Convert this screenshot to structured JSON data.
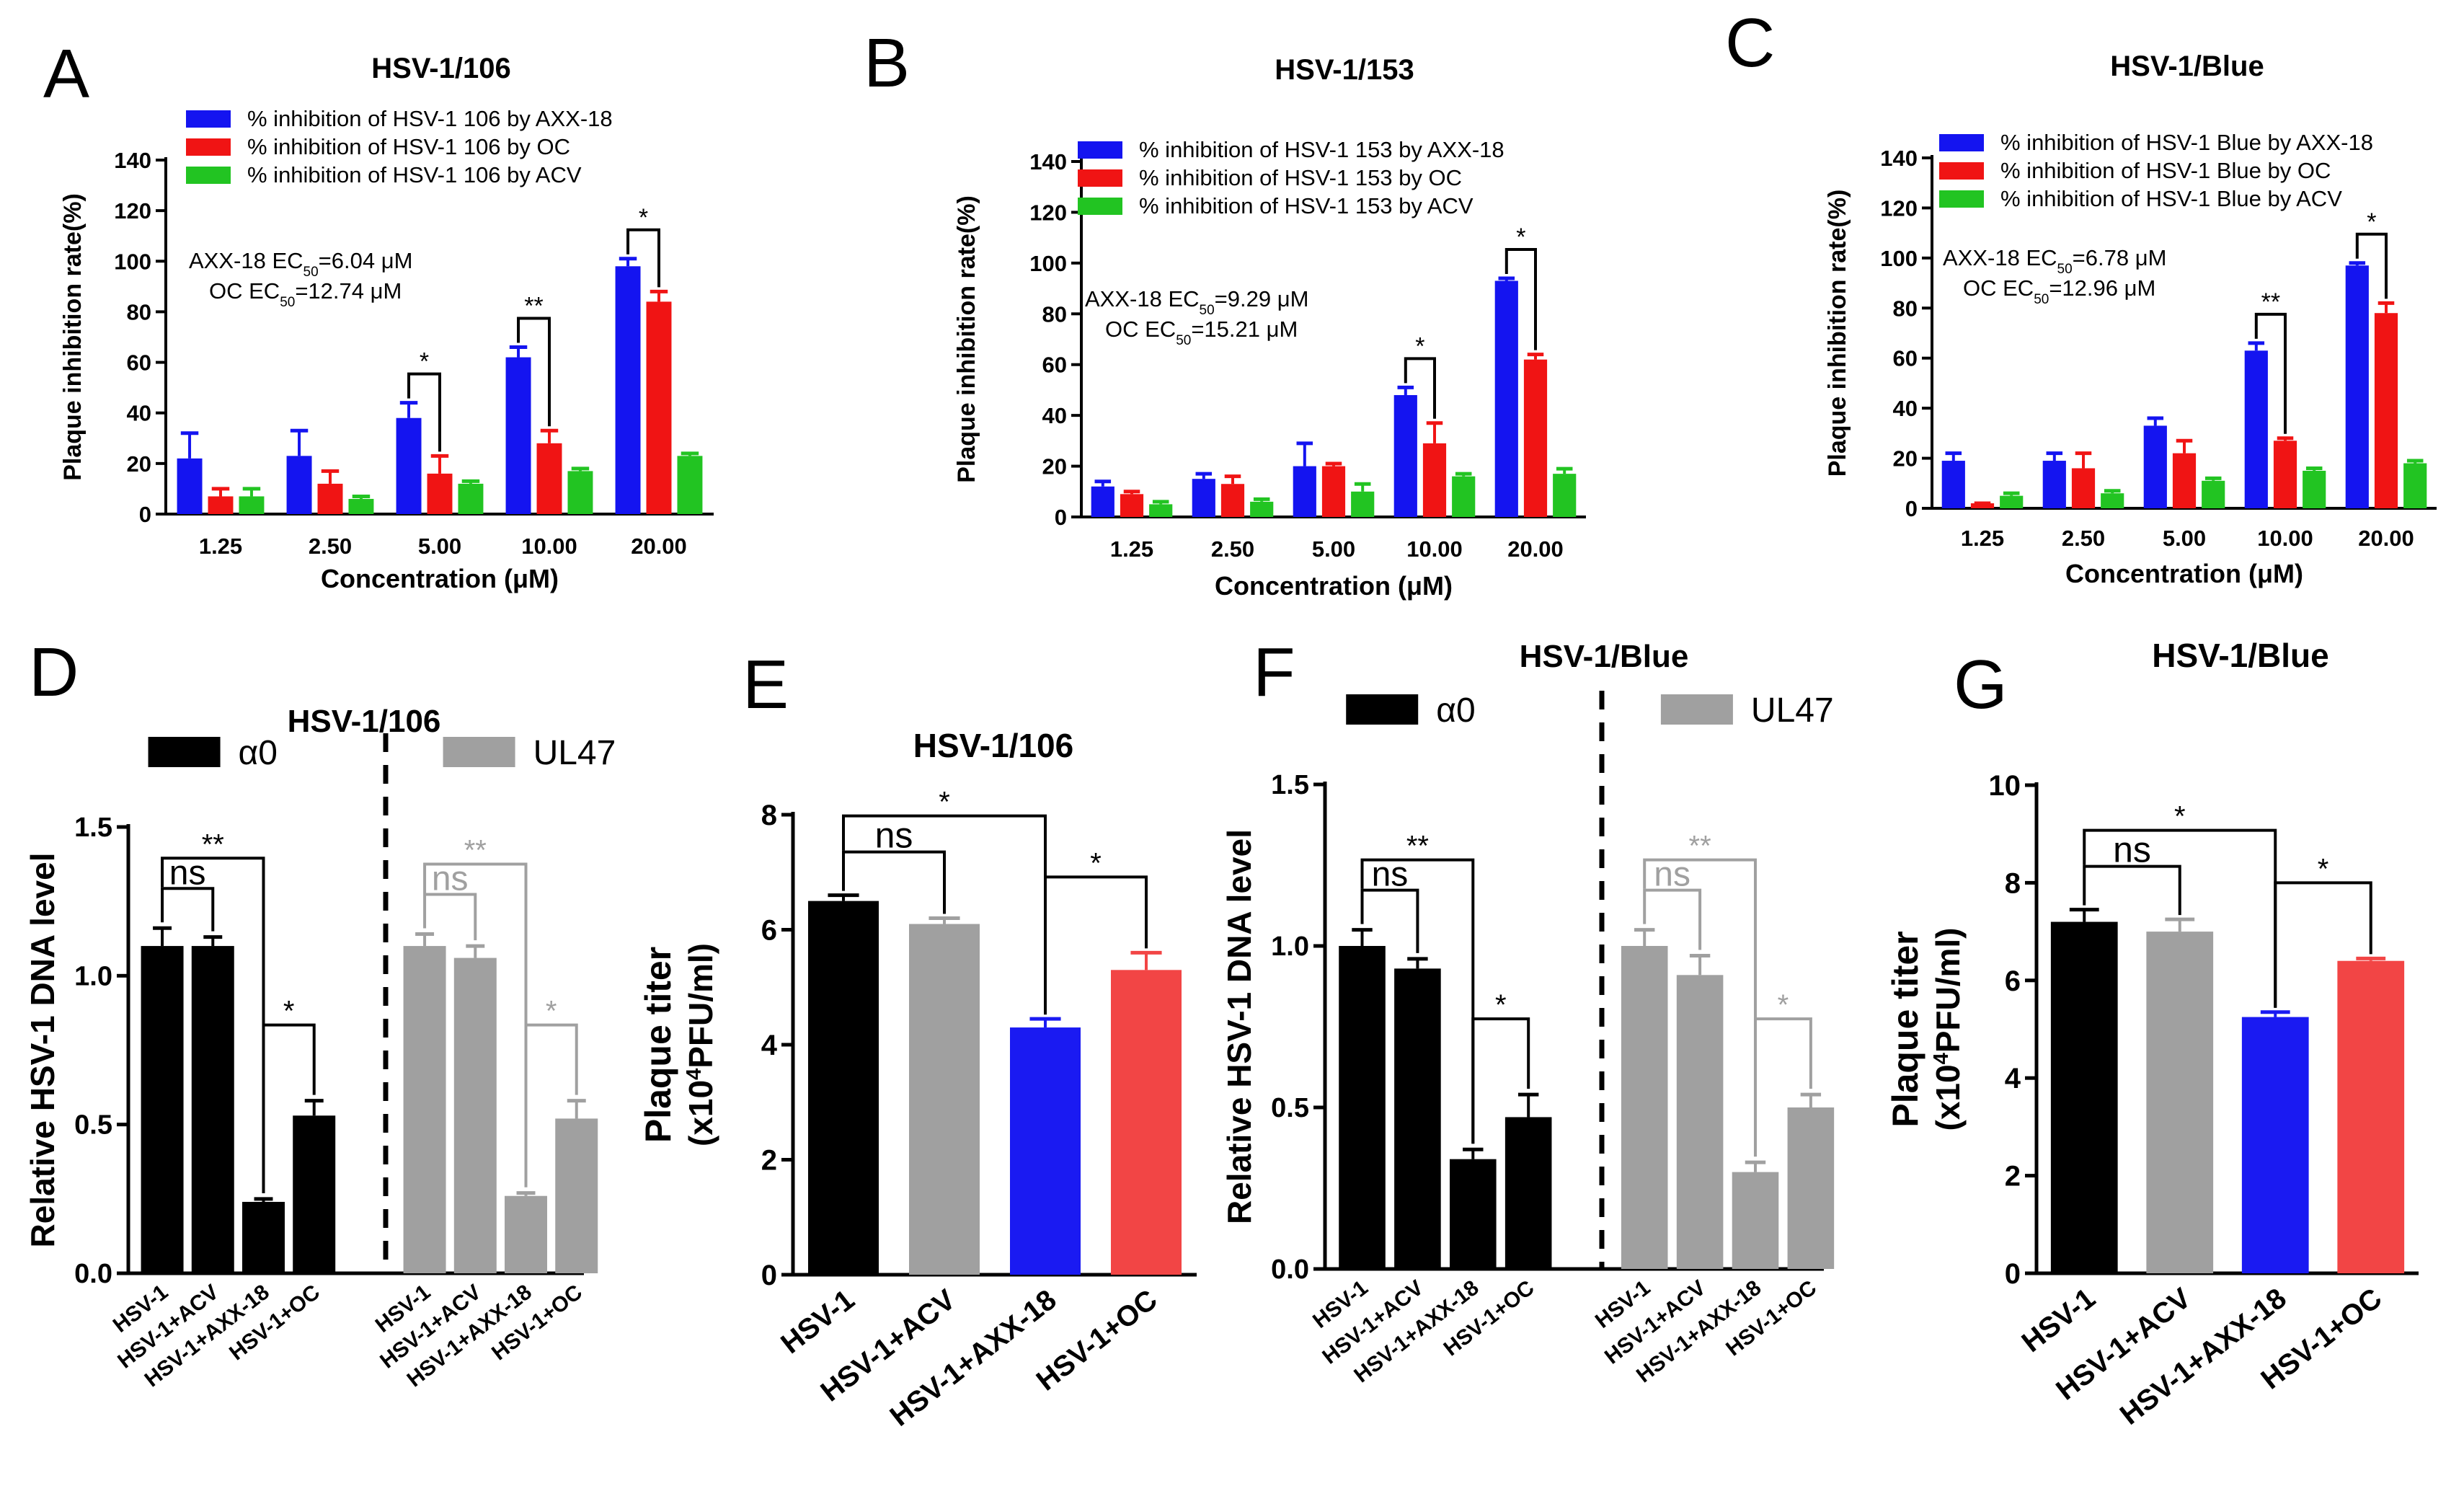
{
  "colors": {
    "blue": "#1414f0",
    "red": "#f01414",
    "green": "#22c422",
    "black": "#000000",
    "gray": "#a0a0a0",
    "blue_bar": "#1a1af2",
    "red_bar": "#f24545"
  },
  "chart_data": [
    {
      "panel": "A",
      "type": "bar",
      "title": "HSV-1/106",
      "xlabel": "Concentration (μM)",
      "ylabel": "Plaque inhibition rate(%)",
      "categories": [
        "1.25",
        "2.50",
        "5.00",
        "10.00",
        "20.00"
      ],
      "yticks": [
        0,
        20,
        40,
        60,
        80,
        100,
        120,
        140
      ],
      "ylim": [
        0,
        140
      ],
      "series": [
        {
          "name": "% inhibition of HSV-1 106 by AXX-18",
          "color": "blue",
          "values": [
            22,
            23,
            38,
            62,
            98
          ],
          "errors": [
            10,
            10,
            6,
            4,
            3
          ]
        },
        {
          "name": "% inhibition of HSV-1 106 by OC",
          "color": "red",
          "values": [
            7,
            12,
            16,
            28,
            84
          ],
          "errors": [
            3,
            5,
            7,
            5,
            4
          ]
        },
        {
          "name": "% inhibition of HSV-1 106 by ACV",
          "color": "green",
          "values": [
            7,
            6,
            12,
            17,
            23
          ],
          "errors": [
            3,
            1,
            1,
            1,
            1
          ]
        }
      ],
      "annotations": [
        "AXX-18 EC50=6.04 μM",
        "OC EC50=12.74 μM"
      ],
      "significance": [
        {
          "category": "5.00",
          "label": "*"
        },
        {
          "category": "10.00",
          "label": "**"
        },
        {
          "category": "20.00",
          "label": "*"
        }
      ]
    },
    {
      "panel": "B",
      "type": "bar",
      "title": "HSV-1/153",
      "xlabel": "Concentration (μM)",
      "ylabel": "Plaque inhibition rate(%)",
      "categories": [
        "1.25",
        "2.50",
        "5.00",
        "10.00",
        "20.00"
      ],
      "yticks": [
        0,
        20,
        40,
        60,
        80,
        100,
        120,
        140
      ],
      "ylim": [
        0,
        140
      ],
      "series": [
        {
          "name": "% inhibition of HSV-1 153 by AXX-18",
          "color": "blue",
          "values": [
            12,
            15,
            20,
            48,
            93
          ],
          "errors": [
            2,
            2,
            9,
            3,
            1
          ]
        },
        {
          "name": "% inhibition of HSV-1 153 by OC",
          "color": "red",
          "values": [
            9,
            13,
            20,
            29,
            62
          ],
          "errors": [
            1,
            3,
            1,
            8,
            2
          ]
        },
        {
          "name": "% inhibition of HSV-1 153 by ACV",
          "color": "green",
          "values": [
            5,
            6,
            10,
            16,
            17
          ],
          "errors": [
            1,
            1,
            3,
            1,
            2
          ]
        }
      ],
      "annotations": [
        "AXX-18 EC50=9.29 μM",
        "OC EC50=15.21 μM"
      ],
      "significance": [
        {
          "category": "10.00",
          "label": "*"
        },
        {
          "category": "20.00",
          "label": "*"
        }
      ]
    },
    {
      "panel": "C",
      "type": "bar",
      "title": "HSV-1/Blue",
      "xlabel": "Concentration (μM)",
      "ylabel": "Plaque inhibition rate(%)",
      "categories": [
        "1.25",
        "2.50",
        "5.00",
        "10.00",
        "20.00"
      ],
      "yticks": [
        0,
        20,
        40,
        60,
        80,
        100,
        120,
        140
      ],
      "ylim": [
        0,
        140
      ],
      "series": [
        {
          "name": "% inhibition of HSV-1 Blue by AXX-18",
          "color": "blue",
          "values": [
            19,
            19,
            33,
            63,
            97
          ],
          "errors": [
            3,
            3,
            3,
            3,
            1
          ]
        },
        {
          "name": "% inhibition of HSV-1 Blue by OC",
          "color": "red",
          "values": [
            2,
            16,
            22,
            27,
            78
          ],
          "errors": [
            0,
            6,
            5,
            1,
            4
          ]
        },
        {
          "name": "% inhibition of HSV-1 Blue by ACV",
          "color": "green",
          "values": [
            5,
            6,
            11,
            15,
            18
          ],
          "errors": [
            1,
            1,
            1,
            1,
            1
          ]
        }
      ],
      "annotations": [
        "AXX-18 EC50=6.78 μM",
        "OC EC50=12.96 μM"
      ],
      "significance": [
        {
          "category": "10.00",
          "label": "**"
        },
        {
          "category": "20.00",
          "label": "*"
        }
      ]
    },
    {
      "panel": "D",
      "type": "bar",
      "title": "HSV-1/106",
      "ylabel": "Relative HSV-1 DNA level",
      "yticks": [
        "0.0",
        "0.5",
        "1.0",
        "1.5"
      ],
      "ylim": [
        0,
        1.5
      ],
      "groups": [
        {
          "name": "α0",
          "color": "black",
          "categories": [
            "HSV-1",
            "HSV-1+ACV",
            "HSV-1+AXX-18",
            "HSV-1+OC"
          ],
          "values": [
            1.1,
            1.1,
            0.24,
            0.53
          ],
          "errors": [
            0.06,
            0.03,
            0.01,
            0.05
          ]
        },
        {
          "name": "UL47",
          "color": "gray",
          "categories": [
            "HSV-1",
            "HSV-1+ACV",
            "HSV-1+AXX-18",
            "HSV-1+OC"
          ],
          "values": [
            1.1,
            1.06,
            0.26,
            0.52
          ],
          "errors": [
            0.04,
            0.04,
            0.01,
            0.06
          ]
        }
      ],
      "significance_labels": [
        "ns",
        "**",
        "*"
      ]
    },
    {
      "panel": "E",
      "type": "bar",
      "title": "HSV-1/106",
      "ylabel": "Plaque titer",
      "ylabel2": "(x10",
      "ylabel_sup": "4",
      "ylabel_tail": "PFU/ml)",
      "yticks": [
        "0",
        "2",
        "4",
        "6",
        "8"
      ],
      "ylim": [
        0,
        8
      ],
      "categories": [
        "HSV-1",
        "HSV-1+ACV",
        "HSV-1+AXX-18",
        "HSV-1+OC"
      ],
      "values": [
        6.5,
        6.1,
        4.3,
        5.3
      ],
      "errors": [
        0.1,
        0.1,
        0.15,
        0.3
      ],
      "bar_colors": [
        "black",
        "gray",
        "blue_bar",
        "red_bar"
      ],
      "significance_labels": [
        "ns",
        "*",
        "*"
      ]
    },
    {
      "panel": "F",
      "type": "bar",
      "title": "HSV-1/Blue",
      "ylabel": "Relative HSV-1 DNA level",
      "yticks": [
        "0.0",
        "0.5",
        "1.0",
        "1.5"
      ],
      "ylim": [
        0,
        1.5
      ],
      "groups": [
        {
          "name": "α0",
          "color": "black",
          "categories": [
            "HSV-1",
            "HSV-1+ACV",
            "HSV-1+AXX-18",
            "HSV-1+OC"
          ],
          "values": [
            1.0,
            0.93,
            0.34,
            0.47
          ],
          "errors": [
            0.05,
            0.03,
            0.03,
            0.07
          ]
        },
        {
          "name": "UL47",
          "color": "gray",
          "categories": [
            "HSV-1",
            "HSV-1+ACV",
            "HSV-1+AXX-18",
            "HSV-1+OC"
          ],
          "values": [
            1.0,
            0.91,
            0.3,
            0.5
          ],
          "errors": [
            0.05,
            0.06,
            0.03,
            0.04
          ]
        }
      ],
      "significance_labels": [
        "ns",
        "**",
        "*"
      ]
    },
    {
      "panel": "G",
      "type": "bar",
      "title": "HSV-1/Blue",
      "ylabel": "Plaque titer",
      "ylabel2": "(x10",
      "ylabel_sup": "4",
      "ylabel_tail": "PFU/ml)",
      "yticks": [
        "0",
        "2",
        "4",
        "6",
        "8",
        "10"
      ],
      "ylim": [
        0,
        10
      ],
      "categories": [
        "HSV-1",
        "HSV-1+ACV",
        "HSV-1+AXX-18",
        "HSV-1+OC"
      ],
      "values": [
        7.2,
        7.0,
        5.25,
        6.4
      ],
      "errors": [
        0.25,
        0.25,
        0.1,
        0.05
      ],
      "bar_colors": [
        "black",
        "gray",
        "blue_bar",
        "red_bar"
      ],
      "significance_labels": [
        "ns",
        "*",
        "*"
      ]
    }
  ]
}
